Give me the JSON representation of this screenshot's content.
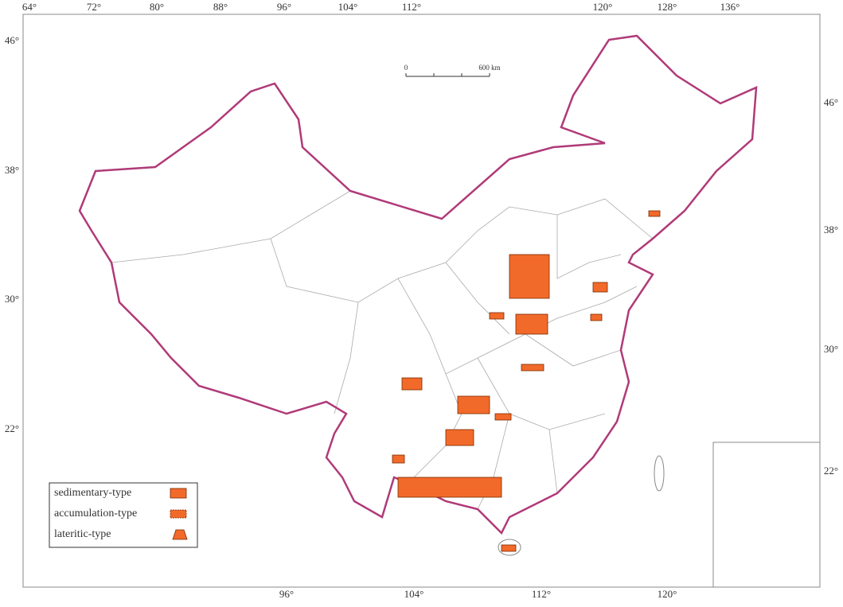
{
  "top_labels": [
    "64°",
    "72°",
    "80°",
    "88°",
    "96°",
    "104°",
    "112°",
    "120°",
    "128°",
    "136°"
  ],
  "left_labels": [
    "46°",
    "38°",
    "30°",
    "22°"
  ],
  "right_labels": [
    "46°",
    "38°",
    "30°",
    "22°"
  ],
  "bottom_labels": [
    "96°",
    "104°",
    "112°",
    "120°"
  ],
  "scale_bar": {
    "start": "0",
    "end": "600 km"
  },
  "legend": [
    "sedimentary-type",
    "accumulation-type",
    "lateritic-type"
  ]
}
